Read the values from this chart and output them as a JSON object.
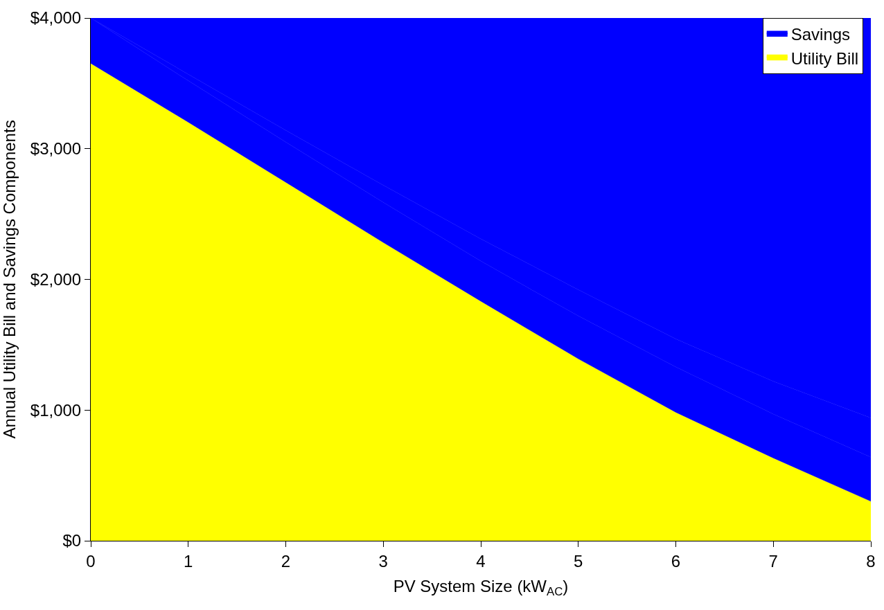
{
  "chart_data": {
    "type": "area",
    "stacked": true,
    "xlabel": "PV System Size (kW$_{AC}$)",
    "ylabel": "Annual Utility Bill and Savings Components",
    "x": [
      0,
      1,
      2,
      3,
      4,
      5,
      6,
      7,
      8
    ],
    "series": [
      {
        "name": "Utility Bill",
        "color": "#ffff00",
        "values": [
          3650,
          3200,
          2740,
          2280,
          1830,
          1390,
          980,
          630,
          300
        ]
      },
      {
        "color": "#0000ff",
        "values": [
          350,
          320,
          310,
          310,
          310,
          330,
          350,
          340,
          340
        ]
      },
      {
        "color": "#0000ff",
        "values": [
          0,
          50,
          90,
          130,
          170,
          200,
          215,
          250,
          300
        ]
      },
      {
        "name": "Savings",
        "color": "#0000ff",
        "values": [
          0,
          430,
          860,
          1280,
          1690,
          2080,
          2455,
          2780,
          3060
        ]
      }
    ],
    "xlim": [
      0,
      8
    ],
    "xticks": [
      0,
      1,
      2,
      3,
      4,
      5,
      6,
      7,
      8
    ],
    "ylim": [
      0,
      4000
    ],
    "yticks": [
      {
        "value": 0,
        "label": "$0"
      },
      {
        "value": 1000,
        "label": "$1,000"
      },
      {
        "value": 2000,
        "label": "$2,000"
      },
      {
        "value": 3000,
        "label": "$3,000"
      },
      {
        "value": 4000,
        "label": "$4,000"
      }
    ],
    "legend": "top right"
  }
}
